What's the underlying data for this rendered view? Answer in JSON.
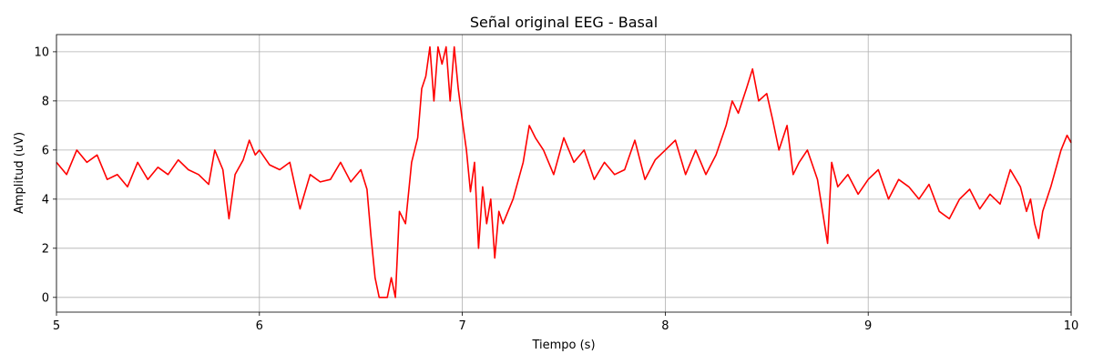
{
  "chart_data": {
    "type": "line",
    "title": "Señal original EEG - Basal",
    "xlabel": "Tiempo (s)",
    "ylabel": "Amplitud (uV)",
    "xlim": [
      5,
      10
    ],
    "ylim": [
      -0.6,
      10.7
    ],
    "xticks": [
      5,
      6,
      7,
      8,
      9,
      10
    ],
    "yticks": [
      0,
      2,
      4,
      6,
      8,
      10
    ],
    "grid": true,
    "color": "#ff0000",
    "series": [
      {
        "x": [
          5.0,
          5.05,
          5.1,
          5.15,
          5.2,
          5.25,
          5.3,
          5.35,
          5.4,
          5.45,
          5.5,
          5.55,
          5.6,
          5.65,
          5.7,
          5.75,
          5.78,
          5.82,
          5.85,
          5.88,
          5.92,
          5.95,
          5.98,
          6.0,
          6.05,
          6.1,
          6.15,
          6.2,
          6.25,
          6.3,
          6.35,
          6.4,
          6.45,
          6.5,
          6.53,
          6.55,
          6.57,
          6.59,
          6.61,
          6.63,
          6.65,
          6.67,
          6.69,
          6.72,
          6.75,
          6.78,
          6.8,
          6.82,
          6.84,
          6.86,
          6.88,
          6.9,
          6.92,
          6.94,
          6.96,
          6.98,
          7.0,
          7.02,
          7.04,
          7.06,
          7.08,
          7.1,
          7.12,
          7.14,
          7.16,
          7.18,
          7.2,
          7.25,
          7.3,
          7.33,
          7.36,
          7.4,
          7.45,
          7.5,
          7.55,
          7.6,
          7.65,
          7.7,
          7.75,
          7.8,
          7.85,
          7.9,
          7.95,
          8.0,
          8.05,
          8.1,
          8.15,
          8.2,
          8.25,
          8.3,
          8.33,
          8.36,
          8.4,
          8.43,
          8.46,
          8.5,
          8.53,
          8.56,
          8.6,
          8.63,
          8.66,
          8.7,
          8.75,
          8.8,
          8.82,
          8.85,
          8.9,
          8.95,
          9.0,
          9.05,
          9.1,
          9.15,
          9.2,
          9.25,
          9.3,
          9.35,
          9.4,
          9.45,
          9.5,
          9.55,
          9.6,
          9.65,
          9.7,
          9.75,
          9.78,
          9.8,
          9.82,
          9.84,
          9.86,
          9.9,
          9.95,
          9.98,
          10.0
        ],
        "y": [
          5.5,
          5.0,
          6.0,
          5.5,
          5.8,
          4.8,
          5.0,
          4.5,
          5.5,
          4.8,
          5.3,
          5.0,
          5.6,
          5.2,
          5.0,
          4.6,
          6.0,
          5.2,
          3.2,
          5.0,
          5.6,
          6.4,
          5.8,
          6.0,
          5.4,
          5.2,
          5.5,
          3.6,
          5.0,
          4.7,
          4.8,
          5.5,
          4.7,
          5.2,
          4.4,
          2.5,
          0.8,
          0.0,
          0.0,
          0.0,
          0.8,
          0.0,
          3.5,
          3.0,
          5.5,
          6.5,
          8.5,
          9.0,
          10.2,
          8.0,
          10.2,
          9.5,
          10.2,
          8.0,
          10.2,
          8.5,
          7.2,
          6.0,
          4.3,
          5.5,
          2.0,
          4.5,
          3.0,
          4.0,
          1.6,
          3.5,
          3.0,
          4.0,
          5.5,
          7.0,
          6.5,
          6.0,
          5.0,
          6.5,
          5.5,
          6.0,
          4.8,
          5.5,
          5.0,
          5.2,
          6.4,
          4.8,
          5.6,
          6.0,
          6.4,
          5.0,
          6.0,
          5.0,
          5.8,
          7.0,
          8.0,
          7.5,
          8.5,
          9.3,
          8.0,
          8.3,
          7.2,
          6.0,
          7.0,
          5.0,
          5.5,
          6.0,
          4.8,
          2.2,
          5.5,
          4.5,
          5.0,
          4.2,
          4.8,
          5.2,
          4.0,
          4.8,
          4.5,
          4.0,
          4.6,
          3.5,
          3.2,
          4.0,
          4.4,
          3.6,
          4.2,
          3.8,
          5.2,
          4.5,
          3.5,
          4.0,
          3.0,
          2.4,
          3.5,
          4.5,
          6.0,
          6.6,
          6.3
        ]
      }
    ]
  }
}
